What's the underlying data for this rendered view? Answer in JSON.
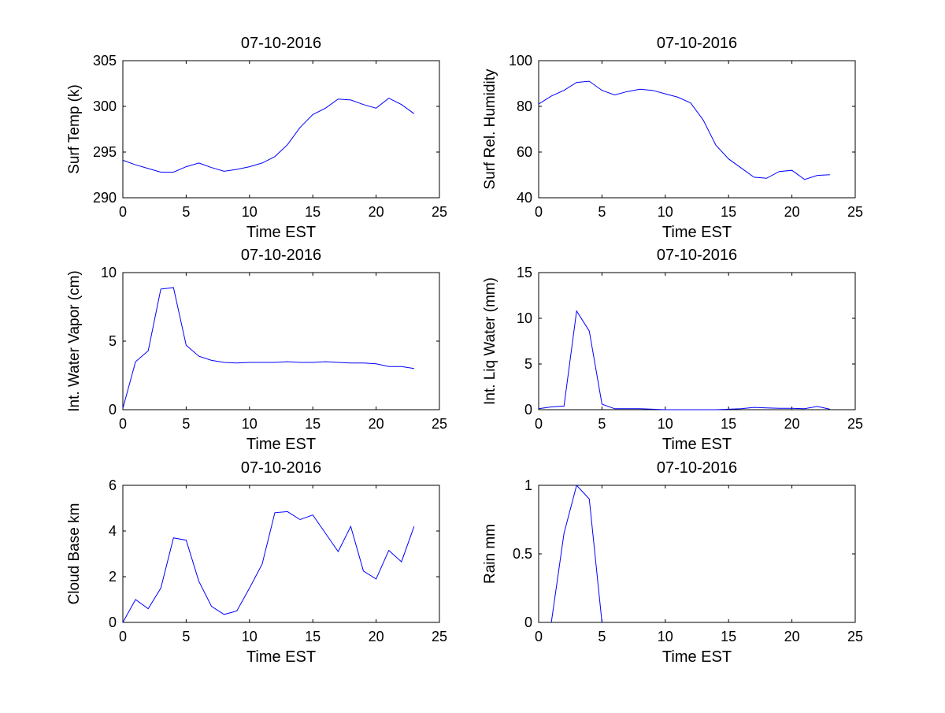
{
  "figure": {
    "background": "#ffffff",
    "line_color": "#0000ff"
  },
  "chart_data": [
    {
      "type": "line",
      "title": "07-10-2016",
      "xlabel": "Time EST",
      "ylabel": "Surf Temp (k)",
      "xlim": [
        0,
        25
      ],
      "ylim": [
        290,
        305
      ],
      "xticks": [
        0,
        5,
        10,
        15,
        20,
        25
      ],
      "yticks": [
        290,
        295,
        300,
        305
      ],
      "grid": false,
      "x": [
        0,
        1,
        2,
        3,
        4,
        5,
        6,
        7,
        8,
        9,
        10,
        11,
        12,
        13,
        14,
        15,
        16,
        17,
        18,
        19,
        20,
        21,
        22,
        23
      ],
      "values": [
        294.1,
        293.6,
        293.2,
        292.8,
        292.8,
        293.4,
        293.8,
        293.3,
        292.9,
        293.1,
        293.4,
        293.8,
        294.5,
        295.8,
        297.7,
        299.1,
        299.8,
        300.8,
        300.7,
        300.2,
        299.8,
        300.9,
        300.2,
        299.2
      ]
    },
    {
      "type": "line",
      "title": "07-10-2016",
      "xlabel": "Time EST",
      "ylabel": "Surf Rel. Humidity",
      "xlim": [
        0,
        25
      ],
      "ylim": [
        40,
        100
      ],
      "xticks": [
        0,
        5,
        10,
        15,
        20,
        25
      ],
      "yticks": [
        40,
        60,
        80,
        100
      ],
      "grid": false,
      "x": [
        0,
        1,
        2,
        3,
        4,
        5,
        6,
        7,
        8,
        9,
        10,
        11,
        12,
        13,
        14,
        15,
        16,
        17,
        18,
        19,
        20,
        21,
        22,
        23
      ],
      "values": [
        81,
        84.5,
        87,
        90.5,
        91,
        87,
        85,
        86.5,
        87.5,
        87,
        85.5,
        84,
        81.5,
        74,
        63,
        57,
        53,
        49,
        48.5,
        51.5,
        52,
        48,
        49.8,
        50.1
      ]
    },
    {
      "type": "line",
      "title": "07-10-2016",
      "xlabel": "Time EST",
      "ylabel": "Int. Water Vapor (cm)",
      "xlim": [
        0,
        25
      ],
      "ylim": [
        0,
        10
      ],
      "xticks": [
        0,
        5,
        10,
        15,
        20,
        25
      ],
      "yticks": [
        0,
        5,
        10
      ],
      "grid": false,
      "x": [
        0,
        1,
        2,
        3,
        4,
        5,
        6,
        7,
        8,
        9,
        10,
        11,
        12,
        13,
        14,
        15,
        16,
        17,
        18,
        19,
        20,
        21,
        22,
        23
      ],
      "values": [
        0.1,
        3.5,
        4.3,
        8.8,
        8.9,
        4.7,
        3.9,
        3.6,
        3.45,
        3.4,
        3.45,
        3.45,
        3.45,
        3.5,
        3.45,
        3.45,
        3.5,
        3.45,
        3.4,
        3.4,
        3.35,
        3.15,
        3.15,
        3.0
      ]
    },
    {
      "type": "line",
      "title": "07-10-2016",
      "xlabel": "Time EST",
      "ylabel": "Int. Liq Water (mm)",
      "xlim": [
        0,
        25
      ],
      "ylim": [
        0,
        15
      ],
      "xticks": [
        0,
        5,
        10,
        15,
        20,
        25
      ],
      "yticks": [
        0,
        5,
        10,
        15
      ],
      "grid": false,
      "x": [
        0,
        1,
        2,
        3,
        4,
        5,
        6,
        7,
        8,
        9,
        10,
        11,
        12,
        13,
        14,
        15,
        16,
        17,
        18,
        19,
        20,
        21,
        22,
        23
      ],
      "values": [
        0.1,
        0.3,
        0.4,
        10.8,
        8.6,
        0.6,
        0.1,
        0.1,
        0.1,
        0.05,
        0,
        0,
        0,
        0,
        0,
        0.05,
        0.1,
        0.25,
        0.2,
        0.15,
        0.15,
        0.1,
        0.35,
        0.05
      ]
    },
    {
      "type": "line",
      "title": "07-10-2016",
      "xlabel": "Time EST",
      "ylabel": "Cloud Base km",
      "xlim": [
        0,
        25
      ],
      "ylim": [
        0,
        6
      ],
      "xticks": [
        0,
        5,
        10,
        15,
        20,
        25
      ],
      "yticks": [
        0,
        2,
        4,
        6
      ],
      "grid": false,
      "x": [
        0,
        1,
        2,
        3,
        4,
        5,
        6,
        7,
        8,
        9,
        10,
        11,
        12,
        13,
        14,
        15,
        16,
        17,
        18,
        19,
        20,
        21,
        22,
        23
      ],
      "values": [
        0,
        1.0,
        0.6,
        1.5,
        3.7,
        3.6,
        1.8,
        0.7,
        0.35,
        0.5,
        1.5,
        2.55,
        4.8,
        4.85,
        4.5,
        4.7,
        3.9,
        3.1,
        4.2,
        2.25,
        1.9,
        3.15,
        2.65,
        4.2
      ]
    },
    {
      "type": "line",
      "title": "07-10-2016",
      "xlabel": "Time EST",
      "ylabel": "Rain mm",
      "xlim": [
        0,
        25
      ],
      "ylim": [
        0,
        1
      ],
      "xticks": [
        0,
        5,
        10,
        15,
        20,
        25
      ],
      "yticks": [
        0,
        0.5,
        1
      ],
      "grid": false,
      "x": [
        1,
        2,
        3,
        4,
        5
      ],
      "values": [
        0,
        0.65,
        1.0,
        0.9,
        0
      ]
    }
  ]
}
